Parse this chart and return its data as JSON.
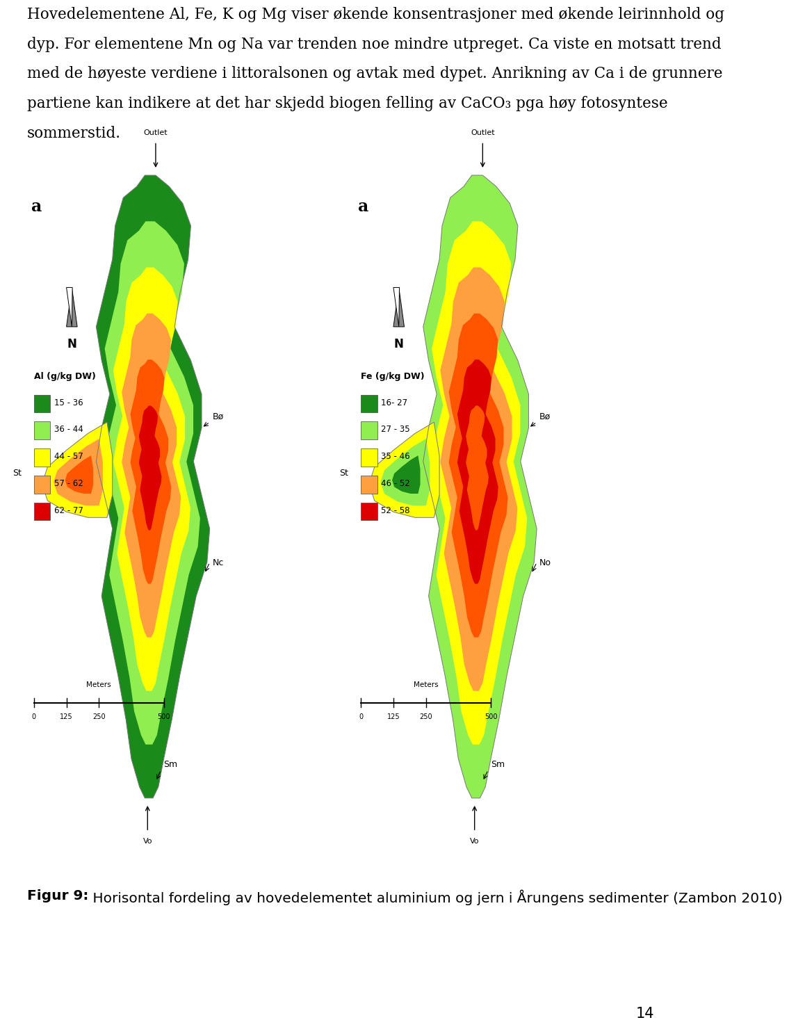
{
  "page_width": 9.6,
  "page_height": 15.08,
  "background_color": "#ffffff",
  "body_lines": [
    "Hovedelementene Al, Fe, K og Mg viser økende konsentrasjoner med økende leirinnhold og",
    "dyp. For elementene Mn og Na var trenden noe mindre utpreget. Ca viste en motsatt trend",
    "med de høyeste verdiene i littoralsonen og avtak med dypet. Anrikning av Ca i de grunnere",
    "partiene kan indikere at det har skjedd biogen felling av CaCO₃ pga høy fotosyntese",
    "sommerstid."
  ],
  "body_fontsize": 15.5,
  "fig_caption_bold": "Figur 9:",
  "fig_caption_rest": " Horisontal fordeling av hovedelementet aluminium og jern i Årungens sedimenter (Zambon 2010)",
  "fig_caption_fontsize": 14.5,
  "page_number": "14",
  "map_label": "a",
  "map_left_title": "Al (g/kg DW)",
  "map_right_title": "Fe (g/kg DW)",
  "map_left_legend": [
    {
      "color": "#1a8a1a",
      "label": "15 - 36"
    },
    {
      "color": "#90EE50",
      "label": "36 - 44"
    },
    {
      "color": "#FFFF00",
      "label": "44 - 57"
    },
    {
      "color": "#FFA040",
      "label": "57 - 62"
    },
    {
      "color": "#DD0000",
      "label": "62 - 77"
    }
  ],
  "map_right_legend": [
    {
      "color": "#1a8a1a",
      "label": "16- 27"
    },
    {
      "color": "#90EE50",
      "label": "27 - 35"
    },
    {
      "color": "#FFFF00",
      "label": "35 - 46"
    },
    {
      "color": "#FFA040",
      "label": "46 - 52"
    },
    {
      "color": "#DD0000",
      "label": "52 - 58"
    }
  ],
  "outlet_label": "Outlet",
  "st_label": "St",
  "bo_label": "Bø",
  "nc_label": "Nc",
  "sm_label": "Sm",
  "vo_label": "Vo",
  "no_label": "No",
  "scale_label": "Meters",
  "scale_values": [
    "0",
    "125",
    "250",
    "500"
  ]
}
